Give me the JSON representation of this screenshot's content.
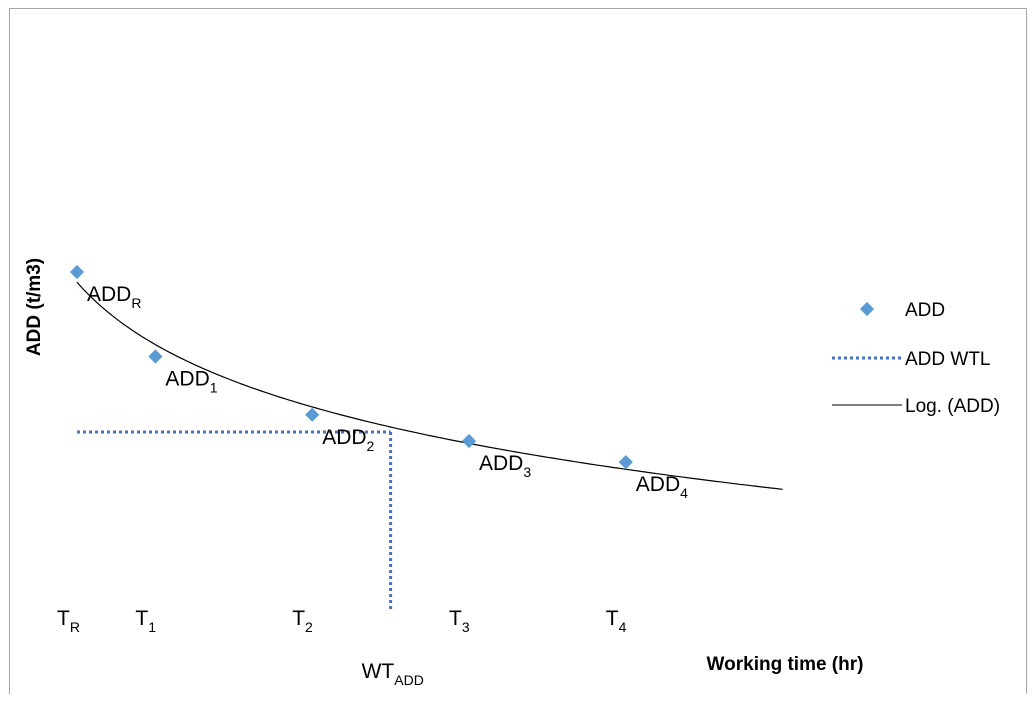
{
  "chart_data": {
    "type": "scatter",
    "xlabel": "Working time (hr)",
    "ylabel": "ADD (t/m3)",
    "colors": {
      "marker": "#5b9bd5",
      "dotted_line": "#4472c4",
      "trend": "#000000"
    },
    "series": [
      {
        "name": "ADD",
        "kind": "markers",
        "points": [
          {
            "label_main": "ADD",
            "label_sub": "R",
            "x": 0,
            "y": 0.0
          },
          {
            "label_main": "ADD",
            "label_sub": "1",
            "x": 1,
            "y": 1.0
          },
          {
            "label_main": "ADD",
            "label_sub": "2",
            "x": 3,
            "y": 1.69
          },
          {
            "label_main": "ADD",
            "label_sub": "3",
            "x": 5,
            "y": 2.0
          },
          {
            "label_main": "ADD",
            "label_sub": "4",
            "x": 7,
            "y": 2.25
          }
        ]
      },
      {
        "name": "ADD WTL",
        "kind": "dotted-line"
      },
      {
        "name": "Log. (ADD)",
        "kind": "trendline"
      }
    ],
    "x_ticks": [
      {
        "main": "T",
        "sub": "R",
        "x": 0
      },
      {
        "main": "T",
        "sub": "1",
        "x": 1
      },
      {
        "main": "T",
        "sub": "2",
        "x": 3
      },
      {
        "main": "T",
        "sub": "3",
        "x": 5
      },
      {
        "main": "T",
        "sub": "4",
        "x": 7
      }
    ],
    "wt_marker": {
      "main": "WT",
      "sub": "ADD",
      "x": 4.0
    },
    "legend_position": "right",
    "grid": false
  }
}
